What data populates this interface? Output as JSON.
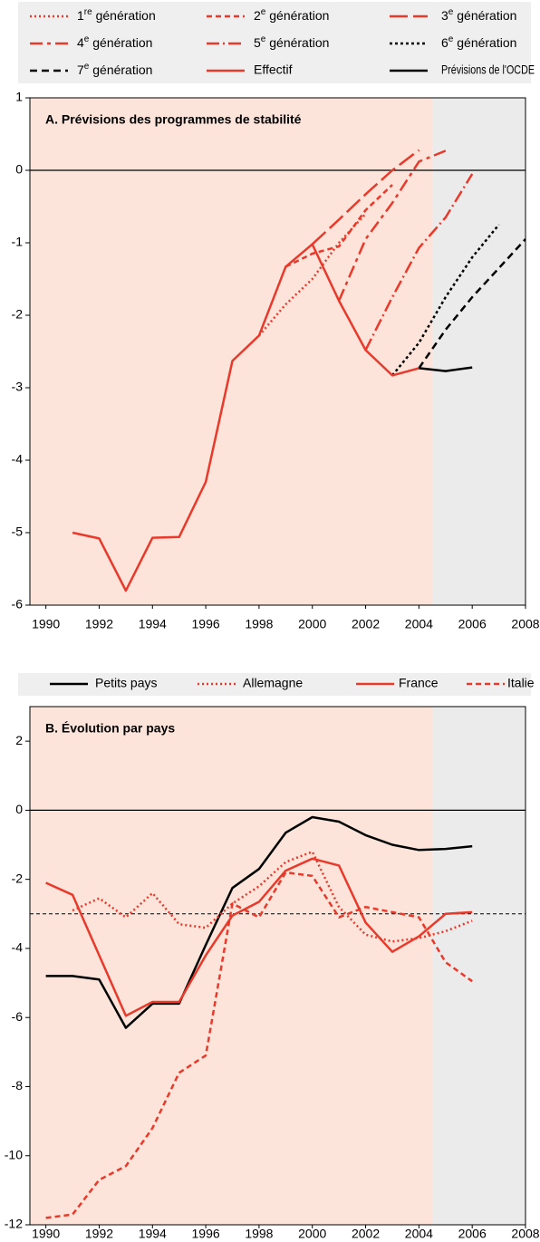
{
  "chart_data": [
    {
      "type": "line",
      "title": "A.  Prévisions des programmes de stabilité",
      "xlim": [
        1989.4,
        2008.0
      ],
      "xticks": [
        1990,
        1992,
        1994,
        1996,
        1998,
        2000,
        2002,
        2004,
        2006,
        2008
      ],
      "ylim": [
        -6,
        1
      ],
      "yticks": [
        1,
        0,
        -1,
        -2,
        -3,
        -4,
        -5,
        -6
      ],
      "shaded_until": 2004.5,
      "series": [
        {
          "name": "1re génération",
          "color": "#e8392b",
          "dash": "2,3",
          "x": [
            1998,
            1999,
            2000,
            2001,
            2002
          ],
          "values": [
            -2.28,
            -1.85,
            -1.5,
            -1.0,
            -0.6
          ]
        },
        {
          "name": "2e génération",
          "color": "#e8392b",
          "dash": "6,4",
          "x": [
            1999,
            2000,
            2001,
            2002,
            2003
          ],
          "values": [
            -1.33,
            -1.15,
            -1.05,
            -0.55,
            -0.2
          ]
        },
        {
          "name": "3e génération",
          "color": "#e8392b",
          "dash": "20,6",
          "x": [
            2000,
            2001,
            2002,
            2003,
            2004
          ],
          "values": [
            -1.02,
            -0.68,
            -0.33,
            0.0,
            0.28
          ]
        },
        {
          "name": "4e génération",
          "color": "#e8392b",
          "dash": "14,5,4,5",
          "x": [
            2001,
            2002,
            2003,
            2004,
            2005
          ],
          "values": [
            -1.8,
            -0.95,
            -0.45,
            0.12,
            0.27
          ]
        },
        {
          "name": "5e génération",
          "color": "#e8392b",
          "dash": "14,4,2,4",
          "x": [
            2002,
            2003,
            2004,
            2005,
            2006
          ],
          "values": [
            -2.48,
            -1.75,
            -1.07,
            -0.65,
            -0.05
          ]
        },
        {
          "name": "6e génération",
          "color": "#000000",
          "dash": "3,3",
          "x": [
            2003,
            2004,
            2005,
            2006,
            2007
          ],
          "values": [
            -2.83,
            -2.38,
            -1.75,
            -1.2,
            -0.75
          ]
        },
        {
          "name": "7e génération",
          "color": "#000000",
          "dash": "8,5",
          "x": [
            2004,
            2005,
            2006,
            2007,
            2008
          ],
          "values": [
            -2.73,
            -2.2,
            -1.75,
            -1.35,
            -0.95
          ]
        },
        {
          "name": "Effectif",
          "color": "#e8392b",
          "dash": "none",
          "x": [
            1991,
            1992,
            1993,
            1994,
            1995,
            1996,
            1997,
            1998,
            1999,
            2000,
            2001,
            2002,
            2003,
            2004
          ],
          "values": [
            -5.0,
            -5.08,
            -5.8,
            -5.07,
            -5.06,
            -4.3,
            -2.63,
            -2.28,
            -1.33,
            -1.02,
            -1.8,
            -2.48,
            -2.83,
            -2.73
          ]
        },
        {
          "name": "Prévisions de l'OCDE",
          "color": "#000000",
          "dash": "none",
          "x": [
            2004,
            2005,
            2006
          ],
          "values": [
            -2.73,
            -2.77,
            -2.72
          ]
        }
      ]
    },
    {
      "type": "line",
      "title": "B.  Évolution par pays",
      "xlim": [
        1989.4,
        2008.0
      ],
      "xticks": [
        1990,
        1992,
        1994,
        1996,
        1998,
        2000,
        2002,
        2004,
        2006,
        2008
      ],
      "ylim": [
        -12,
        3
      ],
      "yticks": [
        2,
        0,
        -2,
        -4,
        -6,
        -8,
        -10,
        -12
      ],
      "shaded_until": 2004.5,
      "reference_line": -3,
      "series": [
        {
          "name": "Petits pays",
          "color": "#000000",
          "dash": "none",
          "x": [
            1990,
            1991,
            1992,
            1993,
            1994,
            1995,
            1996,
            1997,
            1998,
            1999,
            2000,
            2001,
            2002,
            2003,
            2004,
            2005,
            2006
          ],
          "values": [
            -4.8,
            -4.8,
            -4.9,
            -6.3,
            -5.6,
            -5.6,
            -3.9,
            -2.25,
            -1.7,
            -0.65,
            -0.2,
            -0.33,
            -0.72,
            -1.0,
            -1.15,
            -1.12,
            -1.04
          ]
        },
        {
          "name": "Allemagne",
          "color": "#e8392b",
          "dash": "2,3",
          "x": [
            1991,
            1992,
            1993,
            1994,
            1995,
            1996,
            1997,
            1998,
            1999,
            2000,
            2001,
            2002,
            2003,
            2004,
            2005,
            2006
          ],
          "values": [
            -2.9,
            -2.55,
            -3.1,
            -2.4,
            -3.3,
            -3.4,
            -2.7,
            -2.2,
            -1.5,
            -1.2,
            -2.8,
            -3.6,
            -3.8,
            -3.7,
            -3.5,
            -3.2
          ]
        },
        {
          "name": "France",
          "color": "#e8392b",
          "dash": "none",
          "x": [
            1990,
            1991,
            1992,
            1993,
            1994,
            1995,
            1996,
            1997,
            1998,
            1999,
            2000,
            2001,
            2002,
            2003,
            2004,
            2005,
            2006
          ],
          "values": [
            -2.1,
            -2.45,
            -4.2,
            -5.95,
            -5.55,
            -5.55,
            -4.2,
            -3.05,
            -2.65,
            -1.75,
            -1.4,
            -1.6,
            -3.25,
            -4.1,
            -3.65,
            -3.0,
            -2.95
          ]
        },
        {
          "name": "Italie",
          "color": "#e8392b",
          "dash": "6,4",
          "x": [
            1990,
            1991,
            1992,
            1993,
            1994,
            1995,
            1996,
            1997,
            1998,
            1999,
            2000,
            2001,
            2002,
            2003,
            2004,
            2005,
            2006
          ],
          "values": [
            -11.8,
            -11.7,
            -10.7,
            -10.3,
            -9.2,
            -7.6,
            -7.1,
            -2.7,
            -3.1,
            -1.8,
            -1.9,
            -3.1,
            -2.8,
            -2.95,
            -3.1,
            -4.4,
            -4.95
          ]
        }
      ]
    }
  ]
}
